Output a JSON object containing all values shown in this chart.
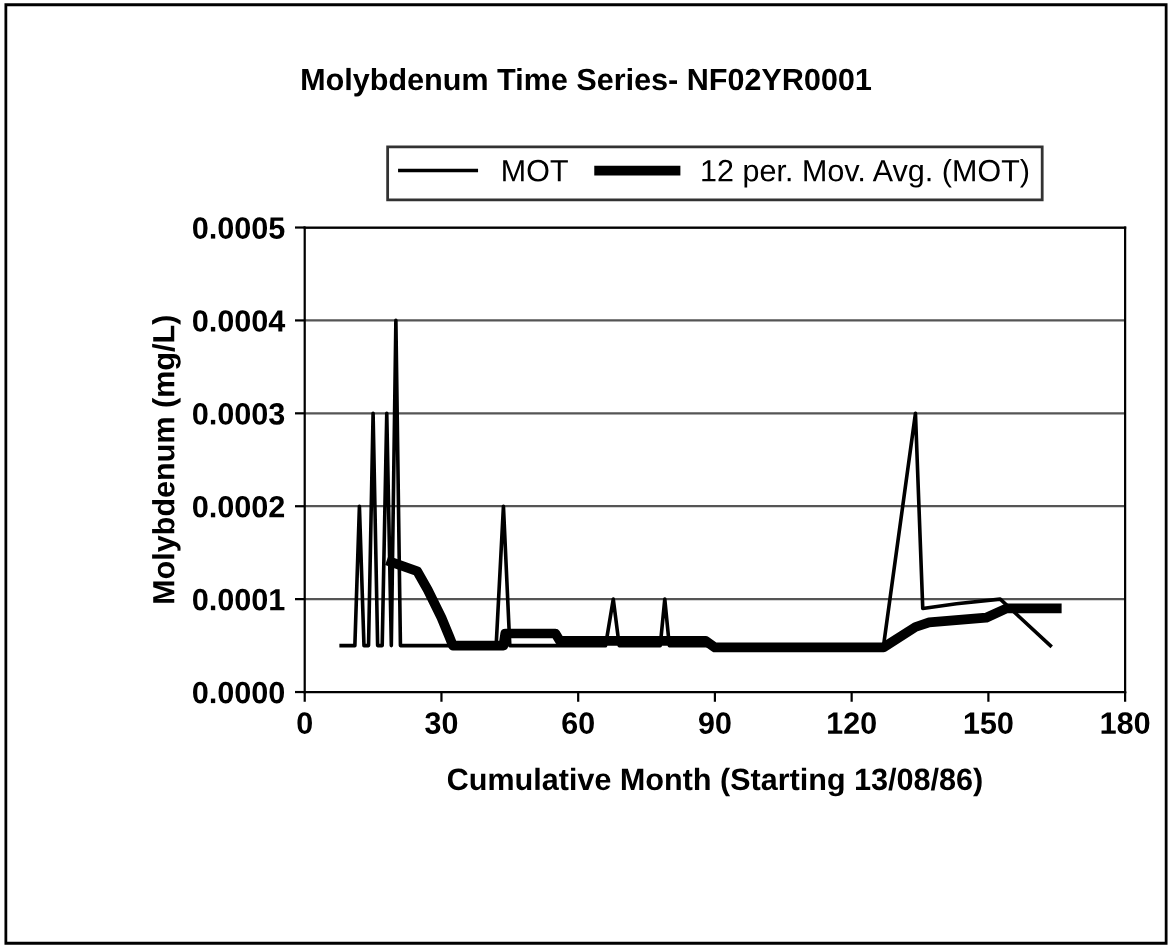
{
  "chart_data": {
    "type": "line",
    "title": "Molybdenum Time Series- NF02YR0001",
    "xlabel": "Cumulative Month (Starting 13/08/86)",
    "ylabel": "Molybdenum (mg/L)",
    "xlim": [
      0,
      180
    ],
    "xticks": [
      0,
      30,
      60,
      90,
      120,
      150,
      180
    ],
    "ylim": [
      0,
      0.0005
    ],
    "yticks": [
      {
        "value": 0,
        "label": "0.0000"
      },
      {
        "value": 0.0001,
        "label": "0.0001"
      },
      {
        "value": 0.0002,
        "label": "0.0002"
      },
      {
        "value": 0.0003,
        "label": "0.0003"
      },
      {
        "value": 0.0004,
        "label": "0.0004"
      },
      {
        "value": 0.0005,
        "label": "0.0005"
      }
    ],
    "grid": "y",
    "legend": "top",
    "marker": "none",
    "line_style": "solid",
    "series": [
      {
        "name": "MOT",
        "color": "#000000",
        "x": [
          8,
          11,
          12,
          13,
          14,
          15,
          16,
          17,
          18,
          19,
          20,
          21,
          42,
          43.6,
          45,
          66,
          67.7,
          69,
          78,
          79,
          80,
          127,
          134,
          135.6,
          143,
          152.6,
          157,
          163.6
        ],
        "values": [
          5e-05,
          5e-05,
          0.0002,
          5e-05,
          5e-05,
          0.0003,
          5e-05,
          5e-05,
          0.0003,
          5e-05,
          0.0004,
          5e-05,
          5e-05,
          0.0002,
          5e-05,
          5e-05,
          0.0001,
          5e-05,
          5e-05,
          0.0001,
          5e-05,
          5e-05,
          0.0003,
          9e-05,
          9.5e-05,
          0.0001,
          8e-05,
          5e-05
        ]
      },
      {
        "name": "12 per. Mov. Avg. (MOT)",
        "color": "#000000",
        "x": [
          19,
          24.7,
          27,
          30,
          31.7,
          32.5,
          43.6,
          44,
          55,
          56,
          60,
          88,
          90,
          127,
          134,
          137,
          149.5,
          154,
          165
        ],
        "values": [
          0.00014,
          0.00013,
          0.00011,
          8e-05,
          6e-05,
          5e-05,
          5e-05,
          6.3e-05,
          6.3e-05,
          5.5e-05,
          5.5e-05,
          5.5e-05,
          4.8e-05,
          4.8e-05,
          7e-05,
          7.5e-05,
          8e-05,
          9e-05,
          9e-05
        ]
      }
    ]
  }
}
